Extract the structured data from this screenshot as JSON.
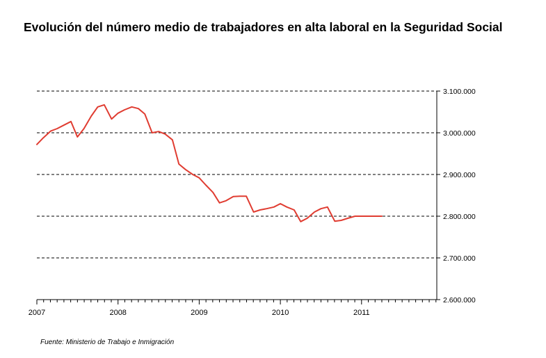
{
  "title": "Evolución del número medio de trabajadores en alta laboral en la Seguridad Social",
  "source": "Fuente: Ministerio de Trabajo e Inmigración",
  "chart_data": {
    "type": "line",
    "title": "Evolución del número medio de trabajadores en alta laboral en la Seguridad Social",
    "xlabel": "",
    "ylabel": "",
    "x_ticks": [
      "2007",
      "2008",
      "2009",
      "2010",
      "2011"
    ],
    "y_ticks": [
      "3.100.000",
      "3.000.000",
      "2.900.000",
      "2.800.000",
      "2.700.000",
      "2.600.000"
    ],
    "xlim": [
      2007.0,
      2012.0
    ],
    "ylim": [
      2600000,
      3100000
    ],
    "grid": "horizontal dashed",
    "y_axis_side": "right",
    "line_color": "#e03c31",
    "series": [
      {
        "x": [
          2007.0,
          2007.08,
          2007.17,
          2007.25,
          2007.33,
          2007.42,
          2007.5,
          2007.58,
          2007.67,
          2007.75,
          2007.83,
          2007.92,
          2008.0,
          2008.08,
          2008.17,
          2008.25,
          2008.33,
          2008.42,
          2008.5,
          2008.58,
          2008.67,
          2008.75,
          2008.83,
          2008.92,
          2009.0,
          2009.08,
          2009.17,
          2009.25,
          2009.33,
          2009.42,
          2009.5,
          2009.58,
          2009.67,
          2009.75,
          2009.83,
          2009.92,
          2010.0,
          2010.08,
          2010.17,
          2010.25,
          2010.33,
          2010.42,
          2010.5,
          2010.58,
          2010.67,
          2010.75,
          2010.83,
          2010.92,
          2011.0,
          2011.08,
          2011.17,
          2011.25
        ],
        "values": [
          2972000,
          2988000,
          3004000,
          3010000,
          3018000,
          3027000,
          2990000,
          3010000,
          3040000,
          3062000,
          3067000,
          3033000,
          3047000,
          3055000,
          3062000,
          3058000,
          3045000,
          3000000,
          3003000,
          2997000,
          2983000,
          2925000,
          2912000,
          2900000,
          2892000,
          2875000,
          2857000,
          2832000,
          2837000,
          2847000,
          2848000,
          2848000,
          2810000,
          2815000,
          2818000,
          2822000,
          2830000,
          2822000,
          2815000,
          2787000,
          2795000,
          2810000,
          2818000,
          2822000,
          2788000,
          2790000,
          2795000,
          2800000,
          2800000,
          2800000,
          2800000,
          2800000
        ]
      }
    ]
  }
}
